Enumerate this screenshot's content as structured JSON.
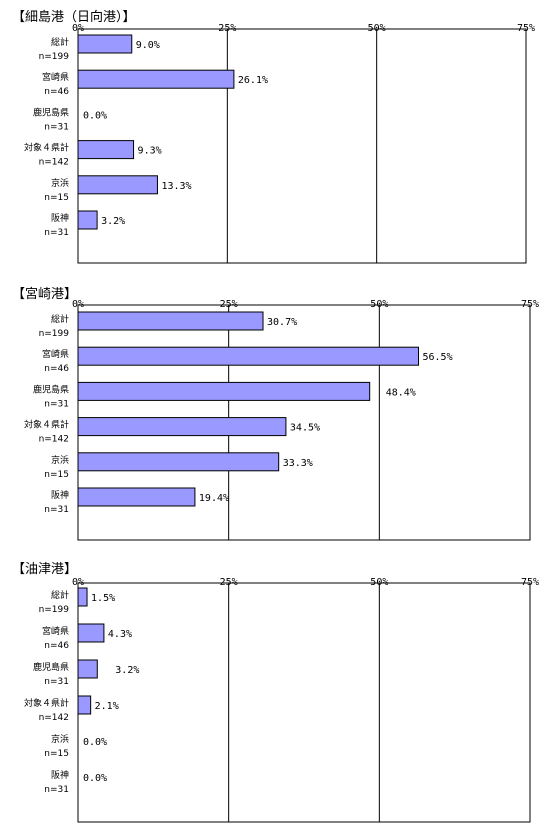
{
  "chart_data": [
    {
      "type": "bar",
      "orientation": "horizontal",
      "title": "【細島港（日向港）】",
      "ticks": [
        "0%",
        "25%",
        "50%",
        "75%"
      ],
      "xlim": [
        0,
        75
      ],
      "categories": [
        {
          "name": "総計",
          "n": "n=199"
        },
        {
          "name": "宮崎県",
          "n": "n=46"
        },
        {
          "name": "鹿児島県",
          "n": "n=31"
        },
        {
          "name": "対象４県計",
          "n": "n=142"
        },
        {
          "name": "京浜",
          "n": "n=15"
        },
        {
          "name": "阪神",
          "n": "n=31"
        }
      ],
      "values": [
        9.0,
        26.1,
        0.0,
        9.3,
        13.3,
        3.2
      ],
      "value_labels": [
        "9.0%",
        "26.1%",
        "0.0%",
        "9.3%",
        "13.3%",
        "3.2%"
      ],
      "bar_color": "#9999ff"
    },
    {
      "type": "bar",
      "orientation": "horizontal",
      "title": "【宮崎港】",
      "ticks": [
        "0%",
        "25%",
        "50%",
        "75%"
      ],
      "xlim": [
        0,
        75
      ],
      "categories": [
        {
          "name": "総計",
          "n": "n=199"
        },
        {
          "name": "宮崎県",
          "n": "n=46"
        },
        {
          "name": "鹿児島県",
          "n": "n=31"
        },
        {
          "name": "対象４県計",
          "n": "n=142"
        },
        {
          "name": "京浜",
          "n": "n=15"
        },
        {
          "name": "阪神",
          "n": "n=31"
        }
      ],
      "values": [
        30.7,
        56.5,
        48.4,
        34.5,
        33.3,
        19.4
      ],
      "value_labels": [
        "30.7%",
        "56.5%",
        "48.4%",
        "34.5%",
        "33.3%",
        "19.4%"
      ],
      "bar_color": "#9999ff"
    },
    {
      "type": "bar",
      "orientation": "horizontal",
      "title": "【油津港】",
      "ticks": [
        "0%",
        "25%",
        "50%",
        "75%"
      ],
      "xlim": [
        0,
        75
      ],
      "categories": [
        {
          "name": "総計",
          "n": "n=199"
        },
        {
          "name": "宮崎県",
          "n": "n=46"
        },
        {
          "name": "鹿児島県",
          "n": "n=31"
        },
        {
          "name": "対象４県計",
          "n": "n=142"
        },
        {
          "name": "京浜",
          "n": "n=15"
        },
        {
          "name": "阪神",
          "n": "n=31"
        }
      ],
      "values": [
        1.5,
        4.3,
        3.2,
        2.1,
        0.0,
        0.0
      ],
      "value_labels": [
        "1.5%",
        "4.3%",
        "3.2%",
        "2.1%",
        "0.0%",
        "0.0%"
      ],
      "bar_color": "#9999ff"
    }
  ]
}
